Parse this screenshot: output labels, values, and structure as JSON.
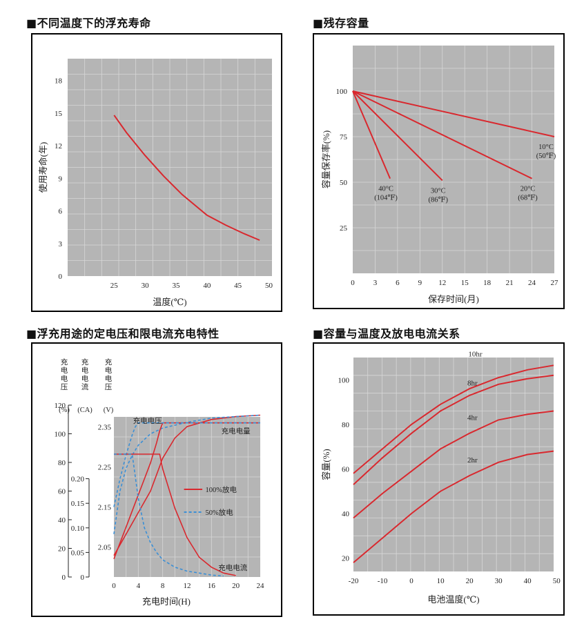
{
  "colors": {
    "plot_bg": "#b5b5b5",
    "grid": "#d7d7d7",
    "curve": "#d9282e",
    "curve50": "#3a8fd6",
    "frame": "#000000"
  },
  "headings": {
    "float_life": "■不同温度下的浮充寿命",
    "residual": "■残存容量",
    "charging": "■浮充用途的定电压和限电流充电特性",
    "capacity_temp": "■容量与温度及放电电流关系"
  },
  "chart_data": [
    {
      "id": "float_life",
      "type": "line",
      "xlabel": "温度(℃)",
      "ylabel": "使用寿命(年)",
      "x_ticks": [
        "25",
        "30",
        "35",
        "40",
        "45",
        "50"
      ],
      "y_ticks": [
        "0",
        "3",
        "6",
        "9",
        "12",
        "15",
        "18"
      ],
      "xlim": [
        17.5,
        50.5
      ],
      "ylim": [
        0,
        20
      ],
      "series": [
        {
          "x": [
            25,
            27,
            30,
            33,
            36,
            40,
            43,
            46,
            48.5
          ],
          "y": [
            14.8,
            13.2,
            11.1,
            9.2,
            7.5,
            5.6,
            4.7,
            3.9,
            3.3
          ]
        }
      ]
    },
    {
      "id": "residual",
      "type": "line",
      "xlabel": "保存时间(月)",
      "ylabel": "容量保存率(%)",
      "x_ticks": [
        "0",
        "3",
        "6",
        "9",
        "12",
        "15",
        "18",
        "21",
        "24",
        "27"
      ],
      "y_ticks": [
        "25",
        "50",
        "75",
        "100"
      ],
      "xlim": [
        0,
        27
      ],
      "ylim": [
        0,
        125
      ],
      "series": [
        {
          "label": [
            "40°C",
            "(104℉)"
          ],
          "x": [
            0,
            5
          ],
          "y": [
            100,
            52
          ]
        },
        {
          "label": [
            "30°C",
            "(86℉)"
          ],
          "x": [
            0,
            12
          ],
          "y": [
            100,
            51
          ]
        },
        {
          "label": [
            "20°C",
            "(68℉)"
          ],
          "x": [
            0,
            24
          ],
          "y": [
            100,
            52
          ]
        },
        {
          "label": [
            "10°C",
            "(50℉)"
          ],
          "x": [
            0,
            27
          ],
          "y": [
            100,
            75
          ]
        }
      ]
    },
    {
      "id": "charging",
      "type": "line",
      "xlabel": "充电时间(H)",
      "x_ticks": [
        "0",
        "4",
        "8",
        "12",
        "16",
        "20",
        "24"
      ],
      "xlim": [
        0,
        24
      ],
      "left_axes": [
        {
          "header": [
            "充",
            "电",
            "电",
            "压"
          ],
          "unit": "(%)",
          "ticks": [
            "0",
            "20",
            "40",
            "60",
            "80",
            "100",
            "120"
          ]
        },
        {
          "header": [
            "充",
            "电",
            "电",
            "流"
          ],
          "unit": "(CA)",
          "ticks": [
            "0",
            "0.05",
            "0.10",
            "0.15",
            "0.20"
          ]
        },
        {
          "header": [
            "充",
            "电",
            "电",
            "压"
          ],
          "unit": "(V)",
          "ticks": [
            "2.05",
            "2.15",
            "2.25",
            "2.35"
          ]
        }
      ],
      "annotations": {
        "voltage": "充电电压",
        "amount": "充电电量",
        "current": "充电电流"
      },
      "legend": {
        "full": "100%放电",
        "half": "50%放电"
      },
      "series": [
        {
          "name": "charge_amount_100",
          "x": [
            0,
            2,
            4,
            6,
            8,
            10,
            12,
            16,
            20,
            24
          ],
          "y": [
            15,
            30,
            45,
            60,
            83,
            97,
            105,
            110,
            112,
            113
          ]
        },
        {
          "name": "charge_amount_50",
          "x": [
            0,
            1,
            2,
            3,
            4,
            6,
            8,
            12,
            16,
            24
          ],
          "y": [
            30,
            60,
            76,
            85,
            92,
            100,
            104,
            108,
            111,
            113
          ]
        },
        {
          "name": "charge_voltage_100",
          "x": [
            0,
            1,
            2,
            3,
            4,
            5,
            6,
            7,
            7.5,
            8,
            24
          ],
          "y": [
            2.02,
            2.06,
            2.1,
            2.14,
            2.18,
            2.22,
            2.26,
            2.31,
            2.34,
            2.36,
            2.36
          ]
        },
        {
          "name": "charge_voltage_50",
          "x": [
            0,
            1,
            2,
            3,
            3.5,
            4,
            24
          ],
          "y": [
            2.15,
            2.22,
            2.28,
            2.33,
            2.35,
            2.36,
            2.36
          ]
        },
        {
          "name": "charge_current_100",
          "x": [
            0,
            7.5,
            8,
            9,
            10,
            11,
            12,
            14,
            16,
            18,
            20
          ],
          "y": [
            0.25,
            0.25,
            0.22,
            0.18,
            0.14,
            0.11,
            0.08,
            0.04,
            0.02,
            0.008,
            0.003
          ]
        },
        {
          "name": "charge_current_50",
          "x": [
            0,
            3,
            4,
            5,
            6,
            7,
            8,
            10,
            12,
            14,
            16,
            18
          ],
          "y": [
            0.25,
            0.25,
            0.16,
            0.1,
            0.07,
            0.05,
            0.035,
            0.02,
            0.012,
            0.008,
            0.004,
            0.002
          ]
        }
      ]
    },
    {
      "id": "capacity_temp",
      "type": "line",
      "xlabel": "电池温度(℃)",
      "ylabel": "容量(%)",
      "x_ticks": [
        "-20",
        "-10",
        "0",
        "10",
        "20",
        "30",
        "40",
        "50"
      ],
      "y_ticks": [
        "20",
        "40",
        "60",
        "80",
        "100"
      ],
      "xlim": [
        -20,
        49
      ],
      "ylim": [
        14,
        110
      ],
      "series": [
        {
          "name": "10hr",
          "x": [
            -20,
            -10,
            0,
            10,
            20,
            30,
            40,
            49
          ],
          "y": [
            58,
            69,
            80,
            89,
            96,
            101,
            104.5,
            106.5
          ]
        },
        {
          "name": "8hr",
          "x": [
            -20,
            -10,
            0,
            10,
            20,
            30,
            40,
            49
          ],
          "y": [
            53,
            65,
            76,
            86,
            93,
            98,
            100.5,
            102
          ]
        },
        {
          "name": "4hr",
          "x": [
            -20,
            -10,
            0,
            10,
            20,
            30,
            40,
            49
          ],
          "y": [
            38,
            49,
            59,
            69,
            76,
            82,
            84.5,
            86
          ]
        },
        {
          "name": "2hr",
          "x": [
            -20,
            -10,
            0,
            10,
            20,
            30,
            40,
            49
          ],
          "y": [
            18,
            29,
            40,
            50,
            57,
            63,
            66.5,
            68
          ]
        }
      ]
    }
  ]
}
